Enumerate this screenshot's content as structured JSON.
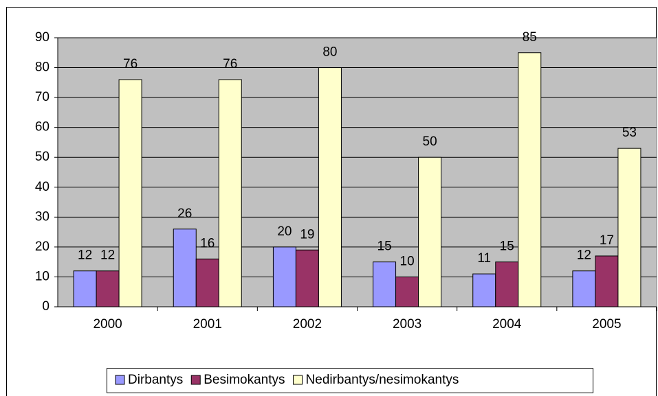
{
  "chart_data": {
    "type": "bar",
    "categories": [
      "2000",
      "2001",
      "2002",
      "2003",
      "2004",
      "2005"
    ],
    "series": [
      {
        "name": "Dirbantys",
        "color": "#9999ff",
        "values": [
          12,
          26,
          20,
          15,
          11,
          12
        ]
      },
      {
        "name": "Besimokantys",
        "color": "#993366",
        "values": [
          12,
          16,
          19,
          10,
          15,
          17
        ]
      },
      {
        "name": "Nedirbantys/nesimokantys",
        "color": "#ffffcc",
        "values": [
          76,
          76,
          80,
          50,
          85,
          53
        ]
      }
    ],
    "ylim": [
      0,
      90
    ],
    "yticks": [
      0,
      10,
      20,
      30,
      40,
      50,
      60,
      70,
      80,
      90
    ],
    "grid": true,
    "plot_background": "#c0c0c0",
    "legend": "bottom"
  }
}
